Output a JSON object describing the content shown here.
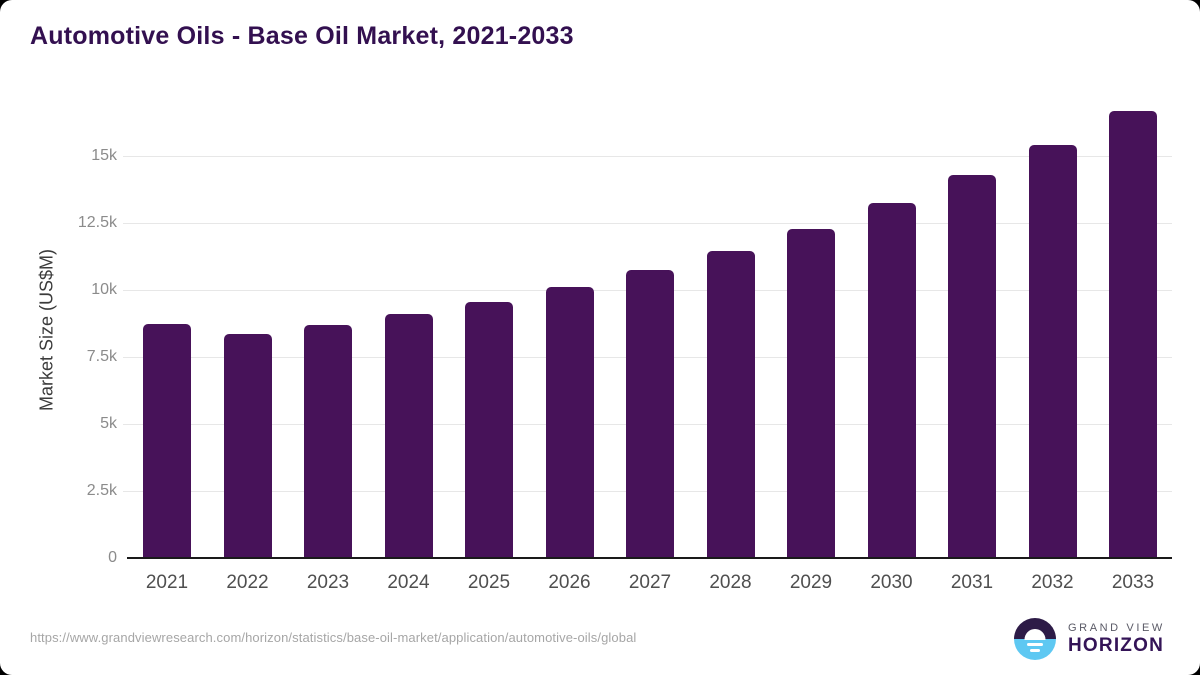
{
  "header": {
    "title": "Automotive Oils - Base Oil Market, 2021-2033"
  },
  "chart_data": {
    "type": "bar",
    "title": "Automotive Oils - Base Oil Market, 2021-2033",
    "categories": [
      "2021",
      "2022",
      "2023",
      "2024",
      "2025",
      "2026",
      "2027",
      "2028",
      "2029",
      "2030",
      "2031",
      "2032",
      "2033"
    ],
    "values": [
      8720,
      8350,
      8690,
      9120,
      9560,
      10110,
      10740,
      11460,
      12280,
      13250,
      14280,
      15400,
      16670
    ],
    "xlabel": "",
    "ylabel": "Market Size (US$M)",
    "ylim": [
      0,
      17000
    ],
    "ytick_interval": 2500,
    "yticks": [
      {
        "value": 0,
        "label": "0"
      },
      {
        "value": 2500,
        "label": "2.5k"
      },
      {
        "value": 5000,
        "label": "5k"
      },
      {
        "value": 7500,
        "label": "7.5k"
      },
      {
        "value": 10000,
        "label": "10k"
      },
      {
        "value": 12500,
        "label": "12.5k"
      },
      {
        "value": 15000,
        "label": "15k"
      }
    ],
    "grid": "horizontal",
    "legend": "none"
  },
  "colors": {
    "bar": "#471259",
    "title": "#331050",
    "grid": "#e7e7e7",
    "axis": "#1a1a1a",
    "ytick_label": "#8b8b8b",
    "xtick_label": "#4f4f4f",
    "y_axis_title": "#3b3b3b",
    "footer_url": "#a6a6a6",
    "logo_dark_half": "#2d1b47",
    "logo_blue_half": "#5ec8f2",
    "logo_grand_view_text": "#5a5a66",
    "logo_horizon_text": "#341457"
  },
  "footer": {
    "source_url": "https://www.grandviewresearch.com/horizon/statistics/base-oil-market/application/automotive-oils/global",
    "logo": {
      "line1": "GRAND VIEW",
      "line2": "HORIZON"
    }
  }
}
